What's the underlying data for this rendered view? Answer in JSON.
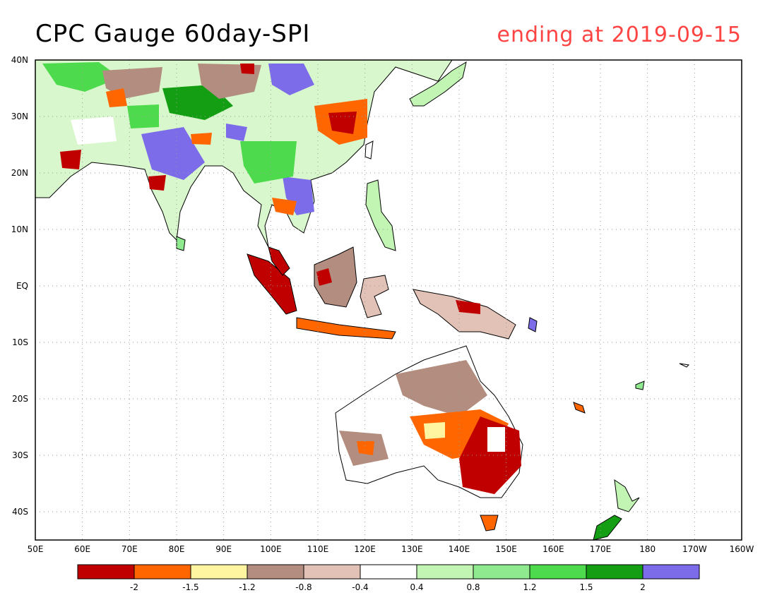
{
  "title": "CPC Gauge 60day-SPI",
  "date_label": "ending at 2019-09-15",
  "lat_labels": [
    "40N",
    "30N",
    "20N",
    "10N",
    "EQ",
    "10S",
    "20S",
    "30S",
    "40S"
  ],
  "lon_labels": [
    "50E",
    "60E",
    "70E",
    "80E",
    "90E",
    "100E",
    "110E",
    "120E",
    "130E",
    "140E",
    "150E",
    "160E",
    "170E",
    "180",
    "170W",
    "160W"
  ],
  "legend": {
    "colors": [
      "#c00000",
      "#ff6600",
      "#fff4a0",
      "#b38e80",
      "#e2c2b6",
      "#ffffff",
      "#c2f5b4",
      "#8fe98f",
      "#4ddb4d",
      "#149e14",
      "#7c6cea"
    ],
    "tick_labels": [
      "-2",
      "-1.5",
      "-1.2",
      "-0.8",
      "-0.4",
      "0.4",
      "0.8",
      "1.2",
      "1.5",
      "2"
    ]
  }
}
